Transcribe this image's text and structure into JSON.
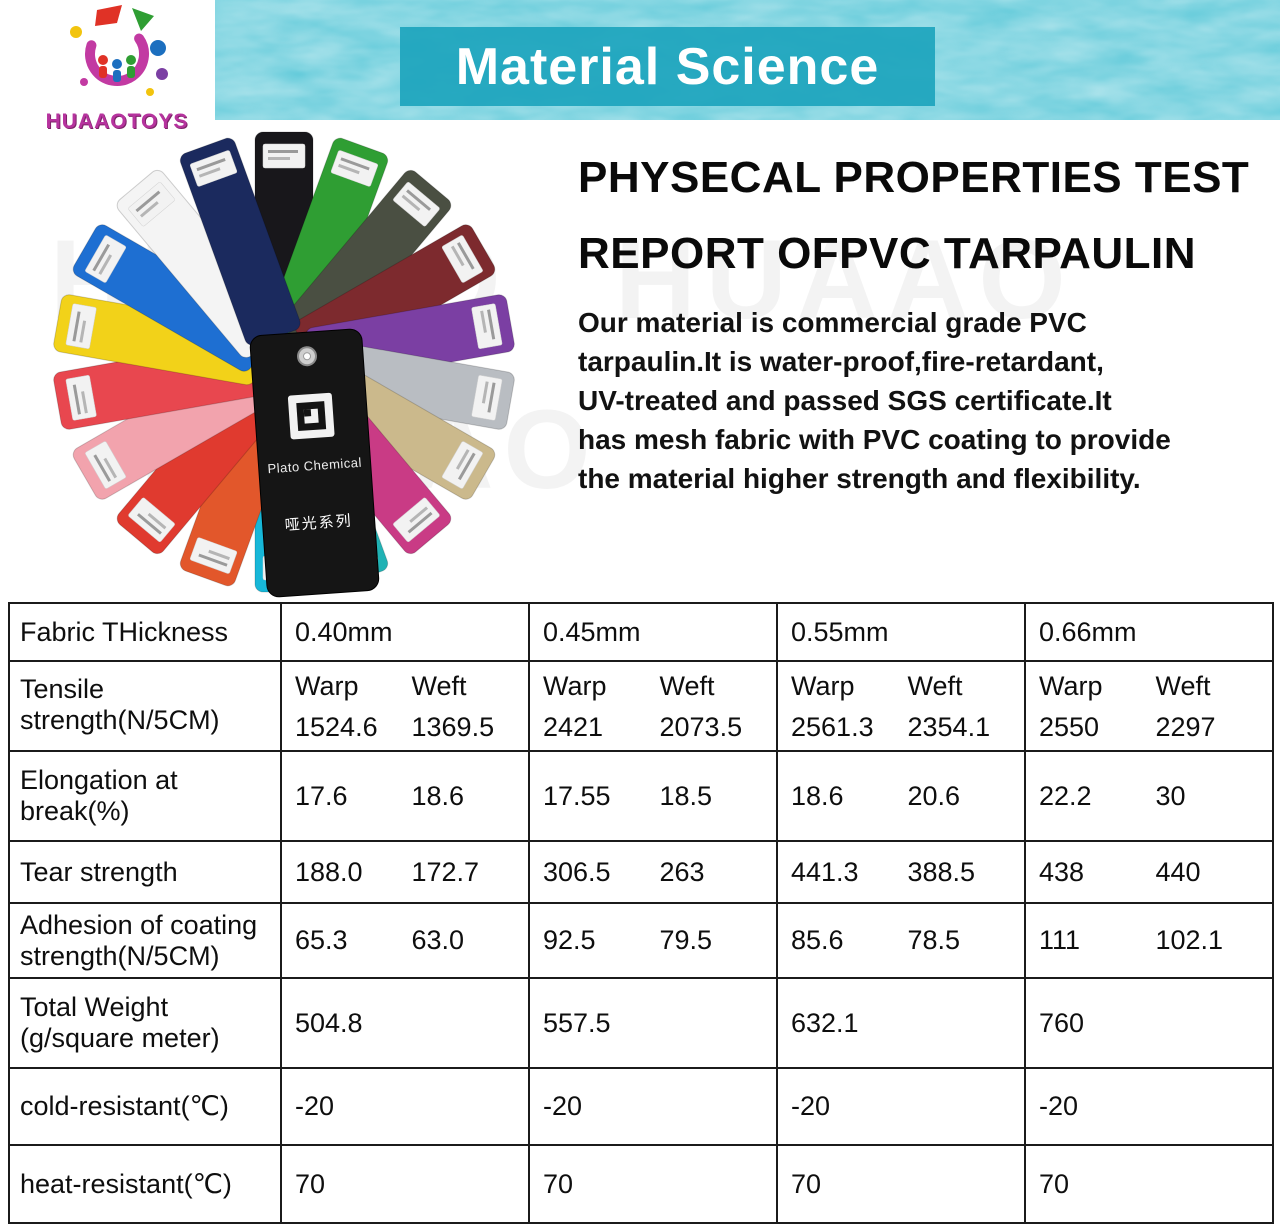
{
  "watermark": "HUAAO",
  "colors": {
    "banner_teal": "#52c5d6",
    "title_box_teal": "#1ea5bd",
    "logo_magenta": "#b6339e",
    "table_border": "#1b1b1b"
  },
  "header": {
    "logo_text": "HUAAOTOYS",
    "title": "Material Science"
  },
  "intro": {
    "heading_line1": "PHYSECAL PROPERTIES TEST",
    "heading_line2": "REPORT OFPVC TARPAULIN",
    "body_lines": [
      "Our material is commercial grade PVC",
      "tarpaulin.It is water-proof,fire-retardant,",
      "UV-treated and passed SGS certificate.It",
      "has mesh fabric with PVC coating to provide",
      "the material higher strength and flexibility."
    ]
  },
  "swatch_fan": {
    "card_brand": "Plato Chemical",
    "card_series": "哑光系列",
    "card_color": "#151515",
    "colors": [
      "#18171b",
      "#2f9e33",
      "#4a4f42",
      "#7d2a2e",
      "#7b3fa3",
      "#b9bdc2",
      "#cbb98c",
      "#c93b85",
      "#20b2b4",
      "#17b7d8",
      "#e2572b",
      "#e03a2f",
      "#f2a3ad",
      "#e8474f",
      "#f2d219",
      "#1e6fd2",
      "#f4f4f4",
      "#1b2a5e"
    ]
  },
  "table": {
    "thickness_label": "Fabric THickness",
    "columns": [
      "0.40mm",
      "0.45mm",
      "0.55mm",
      "0.66mm"
    ],
    "sub_headers": [
      "Warp",
      "Weft"
    ],
    "rows": [
      {
        "label_lines": [
          "Tensile",
          "strength(N/5CM)"
        ],
        "cells": [
          [
            "1524.6",
            "1369.5"
          ],
          [
            "2421",
            "2073.5"
          ],
          [
            "2561.3",
            "2354.1"
          ],
          [
            "2550",
            "2297"
          ]
        ]
      },
      {
        "label_lines": [
          "Elongation at",
          "break(%)"
        ],
        "cells": [
          [
            "17.6",
            "18.6"
          ],
          [
            "17.55",
            "18.5"
          ],
          [
            "18.6",
            "20.6"
          ],
          [
            "22.2",
            "30"
          ]
        ]
      },
      {
        "label_lines": [
          "Tear strength"
        ],
        "cells": [
          [
            "188.0",
            "172.7"
          ],
          [
            "306.5",
            "263"
          ],
          [
            "441.3",
            "388.5"
          ],
          [
            "438",
            "440"
          ]
        ]
      },
      {
        "label_lines": [
          "Adhesion of coating",
          "strength(N/5CM)"
        ],
        "cells": [
          [
            "65.3",
            "63.0"
          ],
          [
            "92.5",
            "79.5"
          ],
          [
            "85.6",
            "78.5"
          ],
          [
            "111",
            "102.1"
          ]
        ]
      },
      {
        "label_lines": [
          "Total Weight",
          "(g/square meter)"
        ],
        "cells": [
          [
            "504.8"
          ],
          [
            "557.5"
          ],
          [
            "632.1"
          ],
          [
            "760"
          ]
        ]
      },
      {
        "label_lines": [
          "cold-resistant(℃)"
        ],
        "cells": [
          [
            "-20"
          ],
          [
            "-20"
          ],
          [
            "-20"
          ],
          [
            "-20"
          ]
        ]
      },
      {
        "label_lines": [
          "heat-resistant(℃)"
        ],
        "cells": [
          [
            "70"
          ],
          [
            "70"
          ],
          [
            "70"
          ],
          [
            "70"
          ]
        ]
      }
    ]
  }
}
